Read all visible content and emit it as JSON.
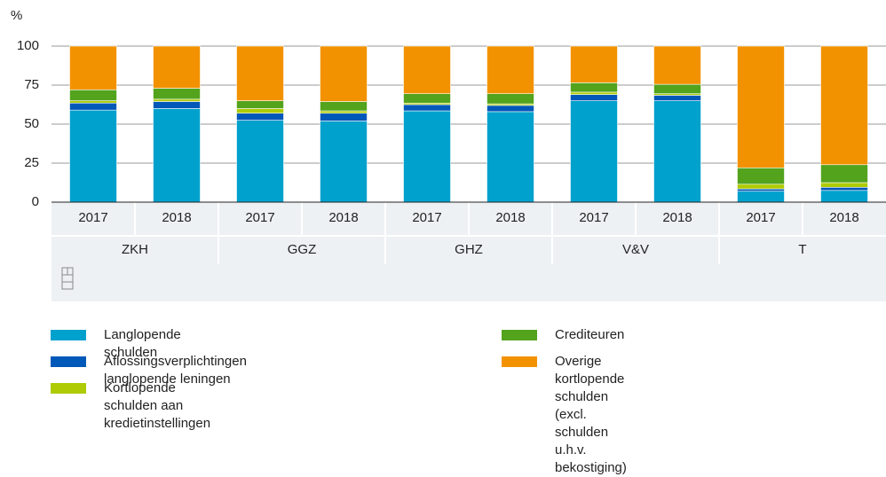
{
  "chart_data": {
    "type": "stacked-bar",
    "y_label": "%",
    "categories": [
      "2017",
      "2018",
      "2017",
      "2018",
      "2017",
      "2018",
      "2017",
      "2018",
      "2017",
      "2018"
    ],
    "groups": [
      "ZKH",
      "GGZ",
      "GHZ",
      "V&V",
      "T"
    ],
    "ylim": [
      0,
      100
    ],
    "yticks": [
      0,
      25,
      50,
      75,
      100
    ],
    "grid": true,
    "series": [
      {
        "name": "Langlopende schulden",
        "color": "#00a1cd",
        "values": [
          59,
          60,
          52.5,
          52,
          58.5,
          58,
          65,
          65,
          7,
          7.5
        ]
      },
      {
        "name": "Aflossingsverplichtingen langlopende leningen",
        "color": "#0058b8",
        "values": [
          4.5,
          4.5,
          4.5,
          5,
          4,
          4,
          4,
          3.5,
          1.5,
          2
        ]
      },
      {
        "name": "Kortlopende schulden aan kredietinstellingen",
        "color": "#afcb05",
        "values": [
          1.5,
          1.5,
          3,
          1.5,
          1,
          1,
          1.5,
          1,
          3,
          3
        ]
      },
      {
        "name": "Crediteuren",
        "color": "#53a31d",
        "values": [
          7,
          7,
          5,
          6,
          6,
          6.5,
          6,
          6,
          10.5,
          11.5
        ]
      },
      {
        "name": "Overige kortlopende schulden\n(excl. schulden u.h.v. bekostiging)",
        "color": "#f39200",
        "values": [
          28,
          27,
          35,
          35.5,
          30.5,
          30.5,
          23.5,
          24.5,
          78,
          76
        ]
      }
    ]
  }
}
